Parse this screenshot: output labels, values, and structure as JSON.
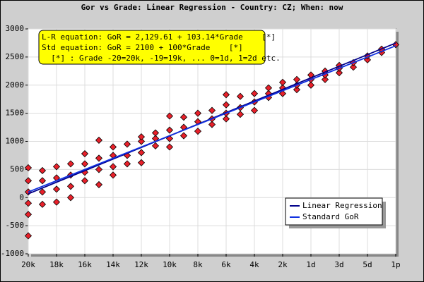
{
  "chart_data": {
    "type": "scatter",
    "title": "Gor vs Grade: Linear Regression - Country: CZ; When: now",
    "annotation": [
      "L-R equation: GoR = 2,129.61 + 103.14*Grade    [*]",
      "Std equation: GoR = 2100 + 100*Grade    [*]",
      "  [*] : Grade -20=20k, -19=19k, ... 0=1d, 1=2d etc."
    ],
    "xlim": [
      -20,
      6
    ],
    "xticks": [
      {
        "value": -20,
        "label": "20k"
      },
      {
        "value": -18,
        "label": "18k"
      },
      {
        "value": -16,
        "label": "16k"
      },
      {
        "value": -14,
        "label": "14k"
      },
      {
        "value": -12,
        "label": "12k"
      },
      {
        "value": -10,
        "label": "10k"
      },
      {
        "value": -8,
        "label": "8k"
      },
      {
        "value": -6,
        "label": "6k"
      },
      {
        "value": -4,
        "label": "4k"
      },
      {
        "value": -2,
        "label": "2k"
      },
      {
        "value": 0,
        "label": "1d"
      },
      {
        "value": 2,
        "label": "3d"
      },
      {
        "value": 4,
        "label": "5d"
      },
      {
        "value": 6,
        "label": "1p"
      }
    ],
    "ylim": [
      -1000,
      3000
    ],
    "yticks": [
      -1000,
      -500,
      0,
      500,
      1000,
      1500,
      2000,
      2500,
      3000
    ],
    "grid": true,
    "legend": "lower right",
    "points": {
      "color": "#e8202a",
      "x": [
        -20,
        -20,
        -20,
        -20,
        -20,
        -20,
        -19,
        -19,
        -19,
        -19,
        -18,
        -18,
        -18,
        -18,
        -17,
        -17,
        -17,
        -17,
        -16,
        -16,
        -16,
        -16,
        -15,
        -15,
        -15,
        -15,
        -14,
        -14,
        -14,
        -14,
        -13,
        -13,
        -13,
        -12,
        -12,
        -12,
        -12,
        -11,
        -11,
        -11,
        -10,
        -10,
        -10,
        -10,
        -9,
        -9,
        -9,
        -8,
        -8,
        -8,
        -7,
        -7,
        -7,
        -6,
        -6,
        -6,
        -6,
        -5,
        -5,
        -5,
        -4,
        -4,
        -4,
        -3,
        -3,
        -3,
        -2,
        -2,
        -2,
        -1,
        -1,
        -1,
        0,
        0,
        0,
        1,
        1,
        1,
        2,
        2,
        2,
        3,
        3,
        4,
        4,
        5,
        5,
        6
      ],
      "y": [
        -680,
        -300,
        -100,
        100,
        300,
        530,
        -120,
        100,
        300,
        480,
        -80,
        150,
        350,
        550,
        0,
        200,
        400,
        600,
        300,
        450,
        600,
        780,
        230,
        500,
        700,
        1020,
        400,
        550,
        750,
        900,
        600,
        750,
        950,
        620,
        800,
        1000,
        1080,
        920,
        1050,
        1150,
        900,
        1050,
        1200,
        1450,
        1100,
        1250,
        1430,
        1180,
        1350,
        1500,
        1300,
        1400,
        1550,
        1400,
        1500,
        1650,
        1830,
        1480,
        1600,
        1800,
        1550,
        1700,
        1850,
        1780,
        1850,
        1950,
        1850,
        1950,
        2050,
        1920,
        2000,
        2100,
        2000,
        2100,
        2180,
        2100,
        2180,
        2250,
        2220,
        2300,
        2350,
        2320,
        2400,
        2450,
        2520,
        2580,
        2640,
        2720
      ]
    },
    "lines": [
      {
        "name": "Linear Regression",
        "color": "#00008b",
        "x": [
          -20,
          6
        ],
        "values": [
          66.81,
          2748.45
        ]
      },
      {
        "name": "Standard GoR",
        "color": "#1030e0",
        "x": [
          -20,
          6
        ],
        "values": [
          100,
          2700
        ]
      }
    ]
  }
}
